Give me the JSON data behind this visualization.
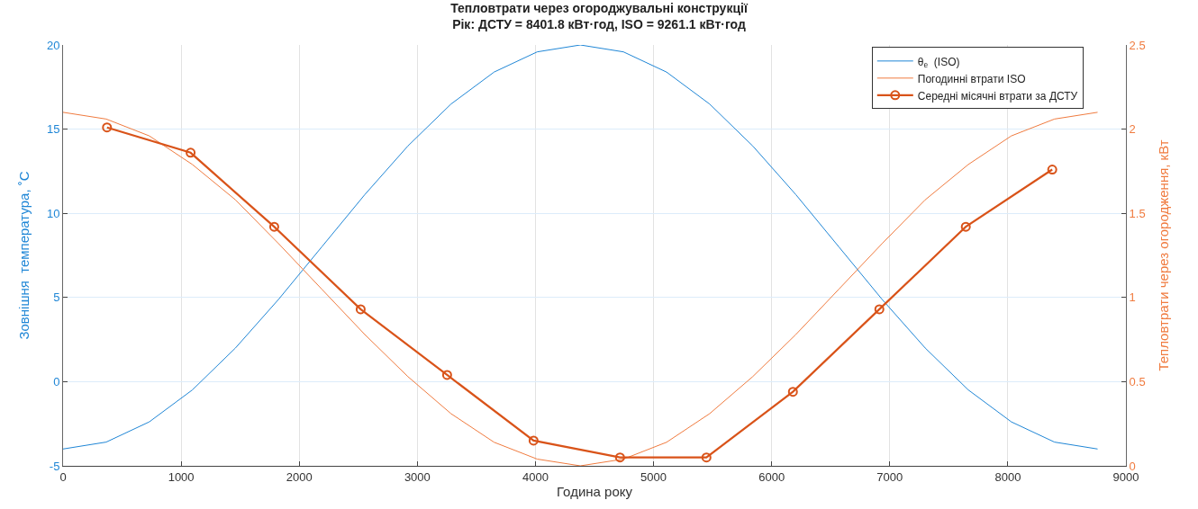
{
  "chart_data": {
    "type": "line",
    "title": "Тепловтрати через огороджувальні конструкції\nРік: ДСТУ = 8401.8 кВт·год, ISO = 9261.1 кВт·год",
    "xlabel": "Година року",
    "ylabel": "Зовнішня  температура, ˚C",
    "y2label": "Тепловтрати через огородження, кВт",
    "xlim": [
      0,
      9000
    ],
    "xticks": [
      0,
      1000,
      2000,
      3000,
      4000,
      5000,
      6000,
      7000,
      8000,
      9000
    ],
    "ylim": [
      -5,
      20
    ],
    "yticks": [
      -5,
      0,
      5,
      10,
      15,
      20
    ],
    "y2lim": [
      0,
      2.5
    ],
    "y2ticks": [
      0,
      0.5,
      1,
      1.5,
      2,
      2.5
    ],
    "grid": true,
    "legend": "top right",
    "series": [
      {
        "name": "θ$_{e}$  (ISO)",
        "color": "#1f86d6",
        "axis": "y",
        "marker": "none",
        "x": [
          0,
          365,
          730,
          1095,
          1460,
          1825,
          2190,
          2555,
          2920,
          3285,
          3650,
          4015,
          4380,
          4745,
          5110,
          5475,
          5840,
          6205,
          6570,
          6935,
          7300,
          7665,
          8030,
          8395,
          8760
        ],
        "values": [
          -4,
          -3.59,
          -2.39,
          -0.49,
          2,
          4.89,
          8,
          11.11,
          14,
          16.49,
          18.39,
          19.59,
          20,
          19.59,
          18.39,
          16.49,
          14,
          11.11,
          8,
          4.89,
          2,
          -0.49,
          -2.39,
          -3.59,
          -4
        ]
      },
      {
        "name": "Погодинні втрати ISO",
        "color": "#f07b3f",
        "axis": "y2",
        "marker": "none",
        "x": [
          0,
          365,
          730,
          1095,
          1460,
          1825,
          2190,
          2555,
          2920,
          3285,
          3650,
          4015,
          4380,
          4745,
          5110,
          5475,
          5840,
          6205,
          6570,
          6935,
          7300,
          7665,
          8030,
          8395,
          8760
        ],
        "values": [
          2.1,
          2.06,
          1.96,
          1.79,
          1.58,
          1.32,
          1.05,
          0.78,
          0.53,
          0.31,
          0.14,
          0.04,
          0,
          0.04,
          0.14,
          0.31,
          0.53,
          0.78,
          1.05,
          1.32,
          1.58,
          1.79,
          1.96,
          2.06,
          2.1
        ]
      },
      {
        "name": "Середні місячні втрати за ДСТУ",
        "color": "#d95319",
        "axis": "y2",
        "marker": "circle",
        "x": [
          372,
          1080,
          1788,
          2520,
          3252,
          3984,
          4716,
          5448,
          6180,
          6912,
          7644,
          8376
        ],
        "values": [
          2.01,
          1.86,
          1.42,
          0.93,
          0.54,
          0.15,
          0.05,
          0.05,
          0.44,
          0.93,
          1.42,
          1.76
        ]
      }
    ]
  }
}
